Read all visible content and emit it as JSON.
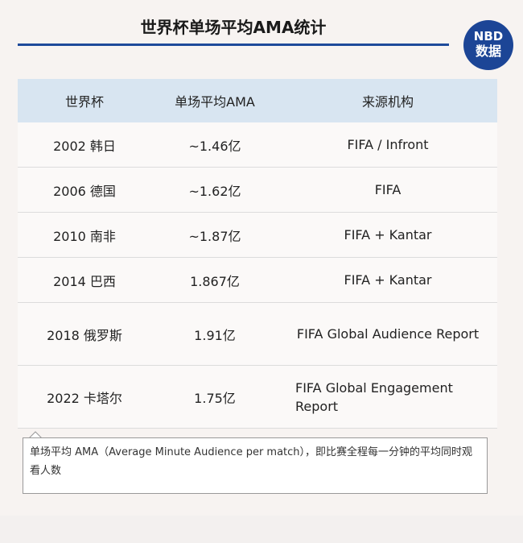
{
  "header": {
    "title": "世界杯单场平均AMA统计",
    "logo": [
      "NBD",
      "数据"
    ]
  },
  "table": {
    "columns": [
      "世界杯",
      "单场平均AMA",
      "来源机构"
    ],
    "rows": [
      [
        "2002 韩日",
        "~1.46亿",
        "FIFA / Infront"
      ],
      [
        "2006 德国",
        "~1.62亿",
        "FIFA"
      ],
      [
        "2010 南非",
        "~1.87亿",
        "FIFA + Kantar"
      ],
      [
        "2014 巴西",
        "1.867亿",
        "FIFA + Kantar"
      ],
      [
        "2018 俄罗斯",
        "1.91亿",
        "FIFA Global Audience Report"
      ],
      [
        "2022 卡塔尔",
        "1.75亿",
        "FIFA Global Engagement Report"
      ]
    ]
  },
  "note": "单场平均 AMA（Average Minute Audience per match），即比赛全程每一分钟的平均同时观看人数"
}
